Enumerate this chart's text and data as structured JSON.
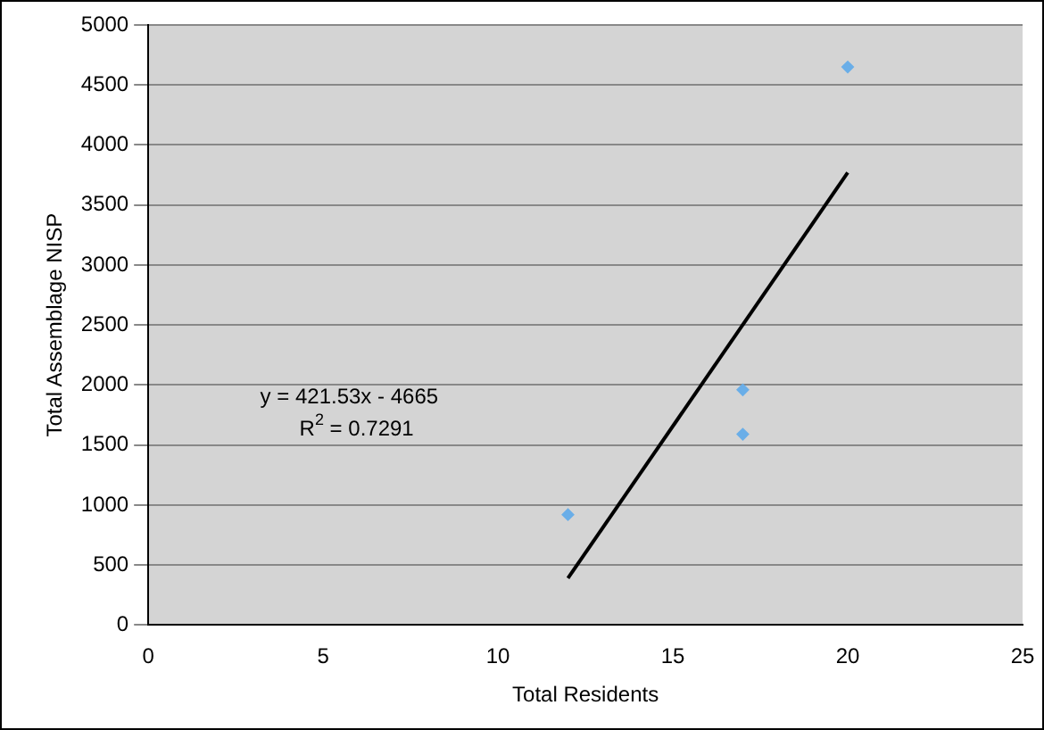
{
  "chart_data": {
    "type": "scatter",
    "xlabel": "Total Residents",
    "ylabel": "Total Assemblage NISP",
    "xlim": [
      0,
      25
    ],
    "xticks": [
      0,
      5,
      10,
      15,
      20,
      25
    ],
    "ylim": [
      0,
      5000
    ],
    "yticks": [
      0,
      500,
      1000,
      1500,
      2000,
      2500,
      3000,
      3500,
      4000,
      4500,
      5000
    ],
    "grid": "y",
    "legend": false,
    "series": [
      {
        "color": "#6aaee8",
        "marker": "diamond",
        "x": [
          12,
          17,
          17,
          20
        ],
        "values": [
          920,
          1960,
          1590,
          4650
        ]
      },
      {
        "type": "line",
        "color": "#000000",
        "marker": "none",
        "x": [
          12,
          20
        ],
        "values": [
          390,
          3770
        ]
      }
    ],
    "annotations": [
      "y = 421.53x - 4665",
      "R$^{2}$ = 0.7291"
    ]
  }
}
